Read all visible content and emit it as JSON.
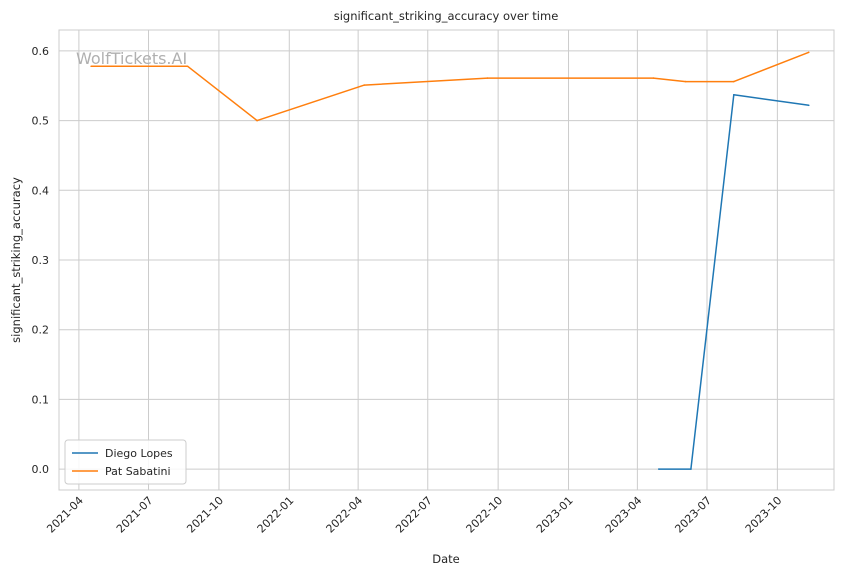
{
  "chart_data": {
    "type": "line",
    "title": "significant_striking_accuracy over time",
    "xlabel": "Date",
    "ylabel": "significant_striking_accuracy",
    "watermark": "WolfTickets.AI",
    "x_ticks": [
      "2021-04",
      "2021-07",
      "2021-10",
      "2022-01",
      "2022-04",
      "2022-07",
      "2022-10",
      "2023-01",
      "2023-04",
      "2023-07",
      "2023-10"
    ],
    "x_tick_dates": [
      "2021-04-01",
      "2021-07-01",
      "2021-10-01",
      "2022-01-01",
      "2022-04-01",
      "2022-07-01",
      "2022-10-01",
      "2023-01-01",
      "2023-04-01",
      "2023-07-01",
      "2023-10-01"
    ],
    "xlim": [
      "2021-03-06",
      "2023-12-14"
    ],
    "y_ticks": [
      "0.0",
      "0.1",
      "0.2",
      "0.3",
      "0.4",
      "0.5",
      "0.6"
    ],
    "ylim": [
      -0.03,
      0.63
    ],
    "grid": true,
    "legend": "lower-left",
    "series": [
      {
        "name": "Diego Lopes",
        "color": "#1f77b4",
        "points": [
          {
            "x": "2023-04-29",
            "y": 0.0
          },
          {
            "x": "2023-06-10",
            "y": 0.0
          },
          {
            "x": "2023-08-05",
            "y": 0.537
          },
          {
            "x": "2023-11-11",
            "y": 0.522
          }
        ]
      },
      {
        "name": "Pat Sabatini",
        "color": "#ff7f0e",
        "points": [
          {
            "x": "2021-04-17",
            "y": 0.578
          },
          {
            "x": "2021-08-21",
            "y": 0.578
          },
          {
            "x": "2021-11-20",
            "y": 0.5
          },
          {
            "x": "2022-04-09",
            "y": 0.551
          },
          {
            "x": "2022-09-17",
            "y": 0.561
          },
          {
            "x": "2023-04-22",
            "y": 0.561
          },
          {
            "x": "2023-06-03",
            "y": 0.556
          },
          {
            "x": "2023-08-05",
            "y": 0.556
          },
          {
            "x": "2023-11-11",
            "y": 0.598
          }
        ]
      }
    ]
  }
}
